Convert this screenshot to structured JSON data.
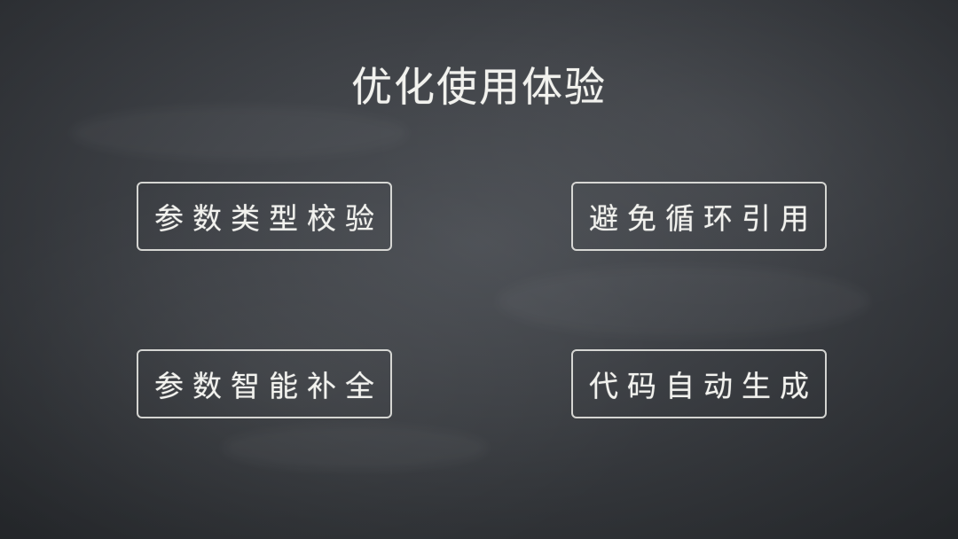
{
  "slide": {
    "title": "优化使用体验",
    "items": [
      {
        "label": "参数类型校验"
      },
      {
        "label": "避免循环引用"
      },
      {
        "label": "参数智能补全"
      },
      {
        "label": "代码自动生成"
      }
    ]
  },
  "colors": {
    "background": "#3a3d41",
    "chalk": "#f2f2ee"
  }
}
